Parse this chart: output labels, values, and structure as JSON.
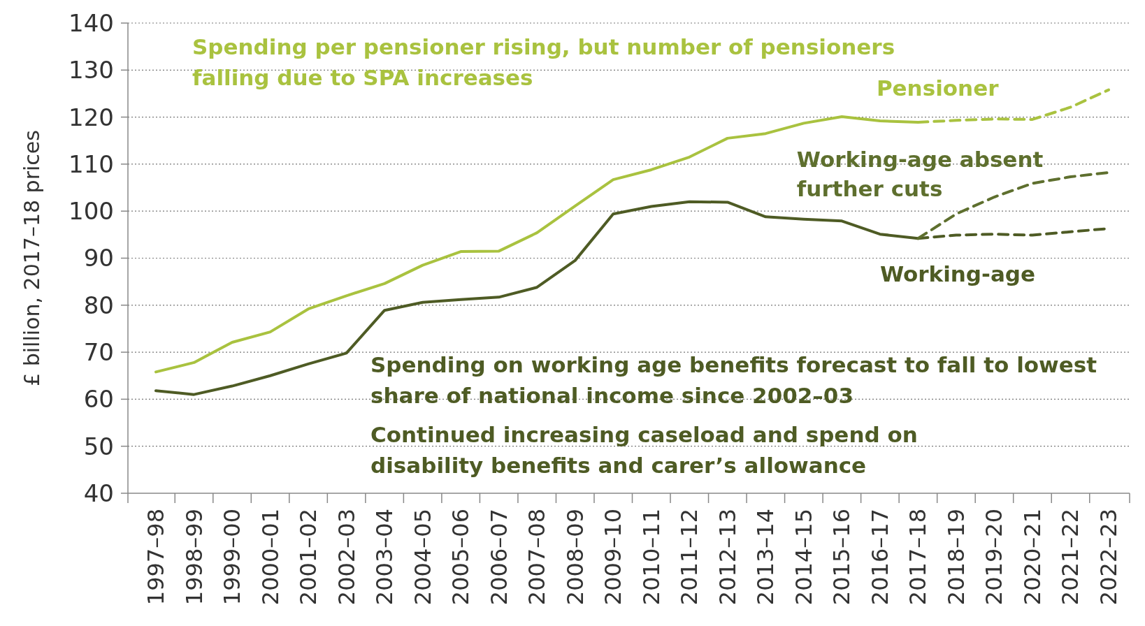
{
  "chart_data": {
    "type": "line",
    "ylabel": "£ billion, 2017–18 prices",
    "categories": [
      "1997–98",
      "1998–99",
      "1999–00",
      "2000–01",
      "2001–02",
      "2002–03",
      "2003–04",
      "2004–05",
      "2005–06",
      "2006–07",
      "2007–08",
      "2008–09",
      "2009–10",
      "2010–11",
      "2011–12",
      "2012–13",
      "2013–14",
      "2014–15",
      "2015–16",
      "2016–17",
      "2017–18",
      "2018–19",
      "2019–20",
      "2020–21",
      "2021–22",
      "2022–23"
    ],
    "series": [
      {
        "name": "Pensioner",
        "color": "#a9c23f",
        "line_style": "solid",
        "values": [
          65.8,
          67.8,
          72.1,
          74.3,
          79.2,
          82,
          84.6,
          88.5,
          91.4,
          91.5,
          95.4,
          101.1,
          106.7,
          108.8,
          111.5,
          115.5,
          116.5,
          118.7,
          120.1,
          119.2,
          118.9,
          null,
          null,
          null,
          null,
          null
        ]
      },
      {
        "color": "#a9c23f",
        "line_style": "dashed",
        "values": [
          null,
          null,
          null,
          null,
          null,
          null,
          null,
          null,
          null,
          null,
          null,
          null,
          null,
          null,
          null,
          null,
          null,
          null,
          null,
          null,
          118.9,
          119.3,
          119.6,
          119.5,
          122.1,
          125.8
        ]
      },
      {
        "name": "Working-age",
        "color": "#4e5b24",
        "line_style": "solid",
        "values": [
          61.8,
          61,
          62.8,
          65,
          67.5,
          69.8,
          78.9,
          80.6,
          81.2,
          81.7,
          83.8,
          89.5,
          99.4,
          101,
          102,
          101.9,
          98.8,
          98.3,
          97.9,
          95.1,
          94.2,
          null,
          null,
          null,
          null,
          null
        ]
      },
      {
        "color": "#4e5b24",
        "line_style": "dashed",
        "values": [
          null,
          null,
          null,
          null,
          null,
          null,
          null,
          null,
          null,
          null,
          null,
          null,
          null,
          null,
          null,
          null,
          null,
          null,
          null,
          null,
          94.2,
          94.9,
          95.1,
          94.9,
          95.6,
          96.3
        ]
      },
      {
        "name": "Working-age absent further cuts",
        "color": "#5e6f2e",
        "line_style": "dashed",
        "values": [
          null,
          null,
          null,
          null,
          null,
          null,
          null,
          null,
          null,
          null,
          null,
          null,
          null,
          null,
          null,
          null,
          null,
          null,
          null,
          null,
          94.2,
          99.4,
          103,
          105.9,
          107.3,
          108.2
        ]
      }
    ],
    "ylim": [
      40,
      140
    ],
    "yticks": [
      40,
      50,
      60,
      70,
      80,
      90,
      100,
      110,
      120,
      130,
      140
    ],
    "grid": "y",
    "annotations": [
      "Spending per pensioner rising, but number of pensioners falling due to SPA increases",
      "Spending on working age benefits forecast to fall to lowest share of national income since 2002–03",
      "Continued increasing caseload and spend on disability benefits and carer’s allowance"
    ]
  }
}
